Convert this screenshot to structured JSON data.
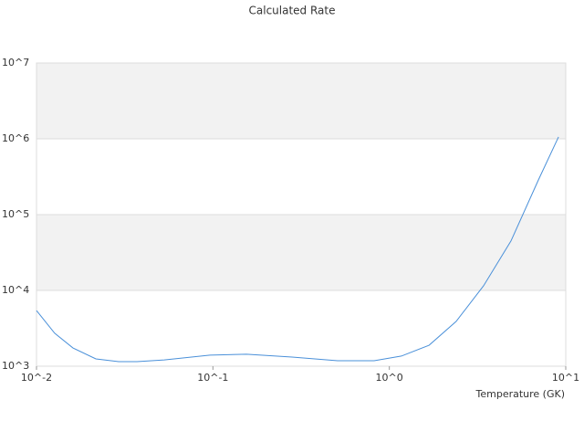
{
  "chart_data": {
    "type": "line",
    "title": "Calculated Rate",
    "x_label": "Temperature (GK)",
    "log_x": true,
    "log_y": true,
    "grid": true,
    "xlim": [
      0.01,
      10
    ],
    "ylim": [
      1000,
      10000000
    ],
    "xticks": [
      {
        "value": 0.01,
        "label": "10^-2"
      },
      {
        "value": 0.1,
        "label": "10^-1"
      },
      {
        "value": 1,
        "label": "10^0"
      },
      {
        "value": 10,
        "label": "10^1"
      }
    ],
    "yticks": [
      {
        "value": 1000,
        "label": "10^3"
      },
      {
        "value": 10000,
        "label": "10^4"
      },
      {
        "value": 100000,
        "label": "10^5"
      },
      {
        "value": 1000000,
        "label": "10^6"
      },
      {
        "value": 10000000,
        "label": "10^7"
      }
    ],
    "x": [
      0.01,
      0.01268,
      0.0161,
      0.0217,
      0.0292,
      0.0371,
      0.053,
      0.0962,
      0.155,
      0.281,
      0.509,
      0.82,
      1.17,
      1.68,
      2.39,
      3.42,
      4.89,
      7.0,
      9.1
    ],
    "series": [
      {
        "color": "#4a90d9",
        "values": [
          5430,
          2720,
          1740,
          1250,
          1150,
          1150,
          1210,
          1400,
          1440,
          1320,
          1180,
          1180,
          1360,
          1890,
          3890,
          11500,
          44800,
          287000,
          1060000
        ]
      }
    ]
  }
}
